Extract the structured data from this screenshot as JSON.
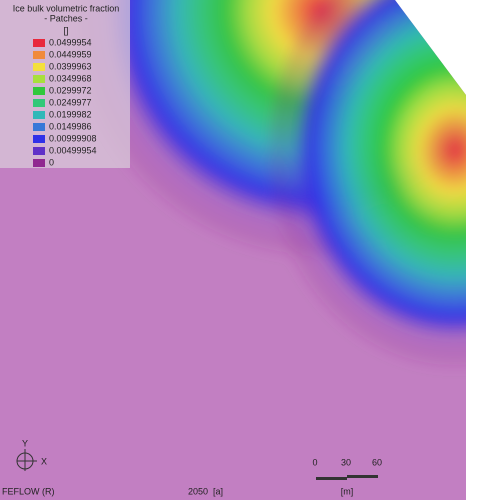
{
  "legend": {
    "title": "Ice bulk volumetric fraction",
    "subtitle": "- Patches -",
    "unit": "[]",
    "entries": [
      {
        "label": "0.0499954",
        "color": "#e8283c"
      },
      {
        "label": "0.0449959",
        "color": "#f08a3c"
      },
      {
        "label": "0.0399963",
        "color": "#f4e03c"
      },
      {
        "label": "0.0349968",
        "color": "#a8e03c"
      },
      {
        "label": "0.0299972",
        "color": "#30c83c"
      },
      {
        "label": "0.0249977",
        "color": "#30c878"
      },
      {
        "label": "0.0199982",
        "color": "#30b8b8"
      },
      {
        "label": "0.0149986",
        "color": "#3878d8"
      },
      {
        "label": "0.00999908",
        "color": "#3030e8"
      },
      {
        "label": "0.00499954",
        "color": "#6030c8"
      },
      {
        "label": "0",
        "color": "#902890"
      }
    ]
  },
  "axes": {
    "y": "Y",
    "x": "X"
  },
  "footer": {
    "brand": "FEFLOW (R)",
    "time": "2050  [a]"
  },
  "scale_bar": {
    "ticks": [
      "0",
      "30",
      "60"
    ],
    "unit": "[m]"
  }
}
